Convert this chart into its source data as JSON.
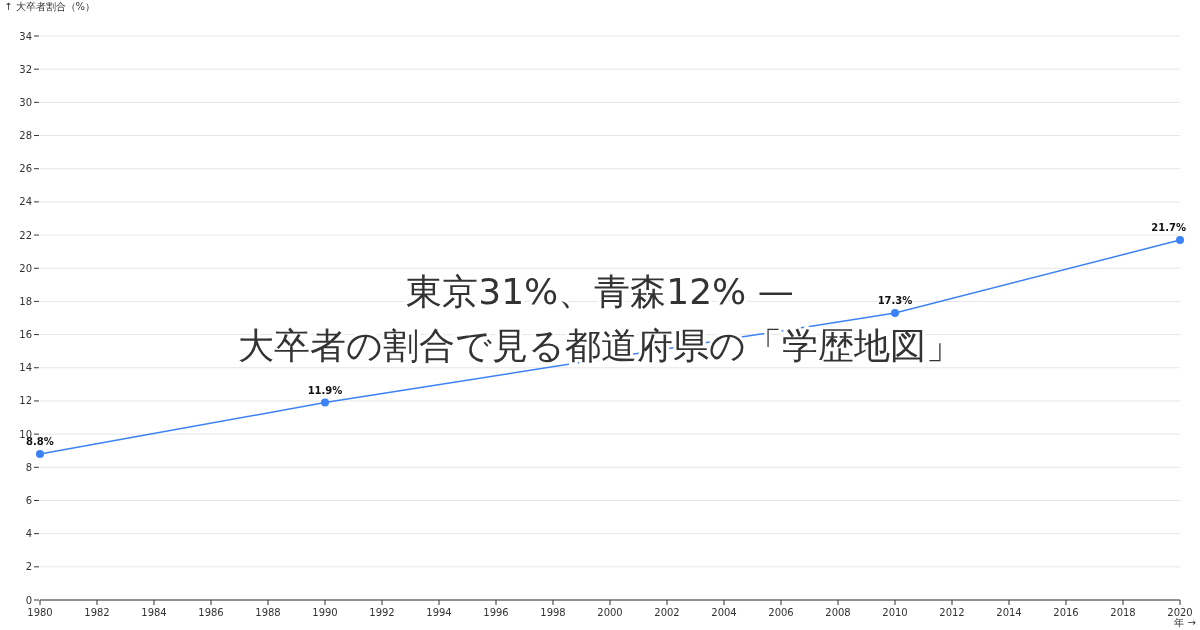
{
  "chart_data": {
    "type": "line",
    "title": "東京31%、青森12% —\n大卒者の割合で見る都道府県の「学歴地図」",
    "xlabel": "年 →",
    "ylabel": "↑ 大卒者割合（%）",
    "x": [
      1980,
      1990,
      2010,
      2020
    ],
    "values": [
      8.8,
      11.9,
      17.3,
      21.7
    ],
    "value_labels": [
      "8.8%",
      "11.9%",
      "17.3%",
      "21.7%"
    ],
    "color": "#3b82f6",
    "marker": "circle",
    "grid": "y",
    "xlim": [
      1980,
      2020
    ],
    "xticks": [
      1980,
      1982,
      1984,
      1986,
      1988,
      1990,
      1992,
      1994,
      1996,
      1998,
      2000,
      2002,
      2004,
      2006,
      2008,
      2010,
      2012,
      2014,
      2016,
      2018,
      2020
    ],
    "ylim": [
      0,
      34
    ],
    "yticks": [
      0,
      2,
      4,
      6,
      8,
      10,
      12,
      14,
      16,
      18,
      20,
      22,
      24,
      26,
      28,
      30,
      32,
      34
    ]
  }
}
